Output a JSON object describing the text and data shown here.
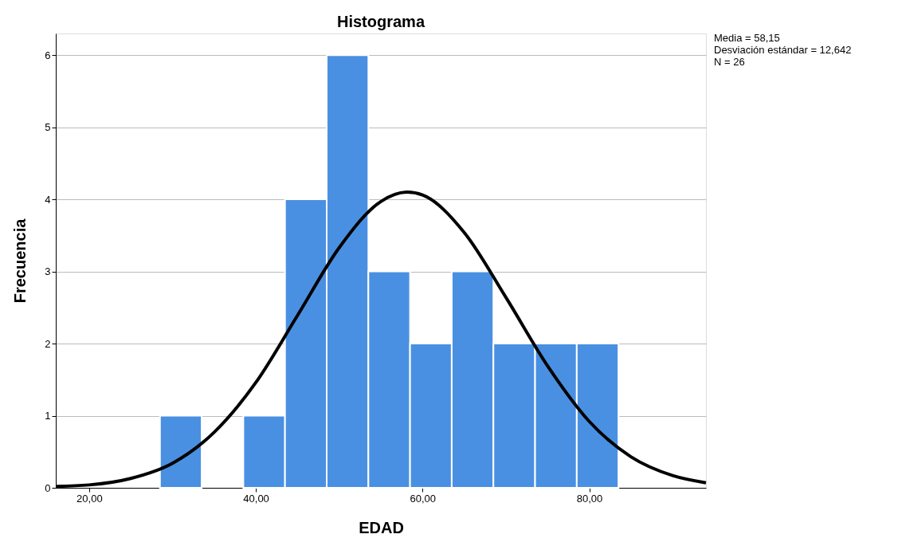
{
  "chart_data": {
    "type": "histogram",
    "title": "Histograma",
    "xlabel": "EDAD",
    "ylabel": "Frecuencia",
    "bins": [
      28.5,
      33.5,
      38.5,
      43.5,
      48.5,
      53.5,
      58.5,
      63.5,
      68.5,
      73.5,
      78.5,
      83.5
    ],
    "series": [
      {
        "color": "#4a90e2",
        "values": [
          1,
          0,
          1,
          4,
          6,
          3,
          2,
          3,
          2,
          2,
          2
        ]
      },
      {
        "type": "line",
        "color": "#000000",
        "x": [
          16,
          20,
          25,
          30,
          35,
          40,
          45,
          50,
          55,
          58.15,
          60,
          65,
          70,
          75,
          80,
          85,
          90,
          94
        ],
        "values": [
          0.02,
          0.04,
          0.13,
          0.34,
          0.77,
          1.46,
          2.39,
          3.33,
          3.97,
          4.1,
          4.06,
          3.54,
          2.64,
          1.69,
          0.92,
          0.43,
          0.17,
          0.07
        ]
      }
    ],
    "xlim": [
      16,
      94
    ],
    "xticks": [
      {
        "value": 20,
        "label": "20,00"
      },
      {
        "value": 40,
        "label": "40,00"
      },
      {
        "value": 60,
        "label": "60,00"
      },
      {
        "value": 80,
        "label": "80,00"
      }
    ],
    "ylim": [
      0,
      6.3
    ],
    "yticks": [
      0,
      1,
      2,
      3,
      4,
      5,
      6
    ],
    "grid": "y",
    "annotations": [
      "Media = 58,15",
      "Desviación estándar = 12,642",
      "N = 26"
    ]
  }
}
